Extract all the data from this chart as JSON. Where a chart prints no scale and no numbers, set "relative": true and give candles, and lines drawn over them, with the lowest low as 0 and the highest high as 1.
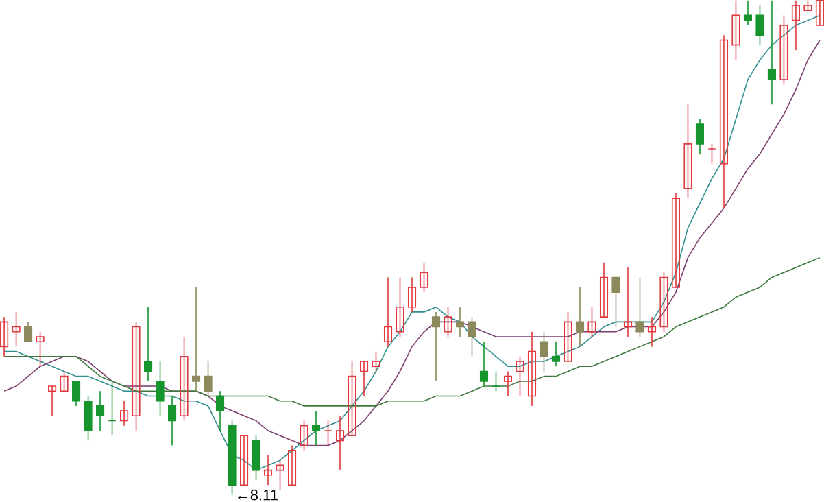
{
  "chart_data": {
    "type": "candlestick",
    "relative": true,
    "categories": [
      null,
      null,
      null,
      null,
      null,
      null,
      null,
      null,
      null,
      null,
      null,
      null,
      null,
      null,
      null,
      null,
      null,
      null,
      null,
      null,
      null,
      null,
      null,
      null,
      null,
      null,
      null,
      null,
      null,
      null,
      null,
      null,
      null,
      null,
      null,
      null,
      null,
      null,
      null,
      null,
      null,
      null,
      null,
      null,
      null,
      null,
      null,
      null,
      null,
      null,
      null,
      null,
      null,
      null,
      null,
      null,
      null,
      null,
      null,
      null,
      null,
      null,
      null,
      null,
      null,
      null,
      null,
      null,
      null
    ],
    "ohlc": [
      [
        0.3,
        0.36,
        0.28,
        0.35
      ],
      [
        0.33,
        0.37,
        0.3,
        0.34
      ],
      [
        0.34,
        0.35,
        0.31,
        0.31
      ],
      [
        0.31,
        0.33,
        0.26,
        0.32
      ],
      [
        0.21,
        0.22,
        0.16,
        0.22
      ],
      [
        0.21,
        0.25,
        0.21,
        0.24
      ],
      [
        0.23,
        0.23,
        0.18,
        0.19
      ],
      [
        0.19,
        0.2,
        0.11,
        0.13
      ],
      [
        0.18,
        0.21,
        0.13,
        0.16
      ],
      [
        0.15,
        0.23,
        0.12,
        0.15
      ],
      [
        0.15,
        0.19,
        0.14,
        0.17
      ],
      [
        0.16,
        0.35,
        0.13,
        0.34
      ],
      [
        0.27,
        0.38,
        0.23,
        0.25
      ],
      [
        0.23,
        0.27,
        0.16,
        0.19
      ],
      [
        0.18,
        0.2,
        0.1,
        0.15
      ],
      [
        0.16,
        0.32,
        0.15,
        0.28
      ],
      [
        0.24,
        0.42,
        0.21,
        0.23
      ],
      [
        0.24,
        0.27,
        0.2,
        0.21
      ],
      [
        0.2,
        0.21,
        0.13,
        0.17
      ],
      [
        0.14,
        0.15,
        0,
        0.02
      ],
      [
        0.02,
        0.12,
        0.02,
        0.12
      ],
      [
        0.11,
        0.12,
        0.03,
        0.05
      ],
      [
        0.04,
        0.08,
        0.02,
        0.05
      ],
      [
        0.05,
        0.07,
        0.01,
        0.06
      ],
      [
        0.02,
        0.1,
        0.02,
        0.09
      ],
      [
        0.1,
        0.15,
        0.09,
        0.14
      ],
      [
        0.14,
        0.17,
        0.1,
        0.13
      ],
      [
        0.13,
        0.15,
        0.1,
        0.13
      ],
      [
        0.11,
        0.16,
        0.05,
        0.13
      ],
      [
        0.12,
        0.27,
        0.12,
        0.24
      ],
      [
        0.25,
        0.27,
        0.2,
        0.27
      ],
      [
        0.26,
        0.29,
        0.25,
        0.27
      ],
      [
        0.31,
        0.44,
        0.3,
        0.34
      ],
      [
        0.33,
        0.44,
        0.32,
        0.38
      ],
      [
        0.38,
        0.44,
        0.37,
        0.42
      ],
      [
        0.42,
        0.47,
        0.41,
        0.45
      ],
      [
        0.36,
        0.37,
        0.23,
        0.34
      ],
      [
        0.33,
        0.38,
        0.32,
        0.36
      ],
      [
        0.35,
        0.38,
        0.32,
        0.34
      ],
      [
        0.35,
        0.36,
        0.28,
        0.32
      ],
      [
        0.25,
        0.31,
        0.22,
        0.23
      ],
      [
        0.22,
        0.25,
        0.21,
        0.22
      ],
      [
        0.23,
        0.25,
        0.2,
        0.24
      ],
      [
        0.25,
        0.28,
        0.2,
        0.27
      ],
      [
        0.2,
        0.33,
        0.18,
        0.29
      ],
      [
        0.31,
        0.33,
        0.25,
        0.28
      ],
      [
        0.28,
        0.31,
        0.26,
        0.27
      ],
      [
        0.27,
        0.37,
        0.27,
        0.35
      ],
      [
        0.35,
        0.42,
        0.3,
        0.33
      ],
      [
        0.33,
        0.38,
        0.32,
        0.35
      ],
      [
        0.36,
        0.47,
        0.36,
        0.44
      ],
      [
        0.44,
        0.44,
        0.34,
        0.41
      ],
      [
        0.34,
        0.46,
        0.32,
        0.35
      ],
      [
        0.35,
        0.44,
        0.32,
        0.33
      ],
      [
        0.33,
        0.36,
        0.3,
        0.34
      ],
      [
        0.34,
        0.45,
        0.33,
        0.44
      ],
      [
        0.42,
        0.61,
        0.42,
        0.6
      ],
      [
        0.62,
        0.79,
        0.6,
        0.71
      ],
      [
        0.75,
        0.76,
        0.69,
        0.71
      ],
      [
        0.7,
        0.71,
        0.67,
        0.7
      ],
      [
        0.67,
        0.93,
        0.58,
        0.92
      ],
      [
        0.91,
        1,
        0.88,
        0.97
      ],
      [
        0.97,
        1,
        0.95,
        0.96
      ],
      [
        0.97,
        0.99,
        0.91,
        0.93
      ],
      [
        0.86,
        1,
        0.79,
        0.84
      ],
      [
        0.84,
        0.97,
        0.83,
        0.95
      ],
      [
        0.96,
        1,
        0.9,
        0.99
      ],
      [
        0.98,
        1,
        0.98,
        0.99
      ],
      [
        0.95,
        1,
        0.95,
        1
      ]
    ],
    "colors": [
      "#e0393e",
      "#e0393e",
      "#8c8a5c",
      "#e0393e",
      "#e0393e",
      "#e0393e",
      "#15952c",
      "#15952c",
      "#15952c",
      "#15952c",
      "#e0393e",
      "#e0393e",
      "#15952c",
      "#15952c",
      "#15952c",
      "#e0393e",
      "#8c8a5c",
      "#8c8a5c",
      "#15952c",
      "#15952c",
      "#e0393e",
      "#15952c",
      "#e0393e",
      "#e0393e",
      "#e0393e",
      "#e0393e",
      "#15952c",
      "#e0393e",
      "#e0393e",
      "#e0393e",
      "#e0393e",
      "#e0393e",
      "#e0393e",
      "#e0393e",
      "#e0393e",
      "#e0393e",
      "#8c8a5c",
      "#e0393e",
      "#8c8a5c",
      "#8c8a5c",
      "#15952c",
      "#15952c",
      "#e0393e",
      "#e0393e",
      "#e0393e",
      "#8c8a5c",
      "#15952c",
      "#e0393e",
      "#8c8a5c",
      "#e0393e",
      "#e0393e",
      "#8c8a5c",
      "#e0393e",
      "#8c8a5c",
      "#e0393e",
      "#e0393e",
      "#e0393e",
      "#e0393e",
      "#15952c",
      "#e0393e",
      "#e0393e",
      "#e0393e",
      "#15952c",
      "#15952c",
      "#15952c",
      "#e0393e",
      "#e0393e",
      "#e0393e",
      "#e0393e"
    ],
    "series": [
      {
        "type": "line",
        "color": "#2f8f8f",
        "values": [
          0.29,
          0.29,
          0.28,
          0.27,
          0.26,
          0.25,
          0.24,
          0.24,
          0.23,
          0.22,
          0.21,
          0.21,
          0.2,
          0.2,
          0.2,
          0.19,
          0.19,
          0.18,
          0.13,
          0.08,
          0.07,
          0.05,
          0.06,
          0.07,
          0.09,
          0.11,
          0.13,
          0.14,
          0.15,
          0.18,
          0.21,
          0.25,
          0.3,
          0.33,
          0.37,
          0.37,
          0.38,
          0.36,
          0.35,
          0.32,
          0.3,
          0.28,
          0.26,
          0.26,
          0.27,
          0.27,
          0.28,
          0.29,
          0.3,
          0.32,
          0.34,
          0.35,
          0.35,
          0.35,
          0.35,
          0.39,
          0.45,
          0.54,
          0.59,
          0.64,
          0.68,
          0.76,
          0.84,
          0.88,
          0.91,
          0.93,
          0.95,
          0.96,
          0.97
        ]
      },
      {
        "type": "line",
        "color": "#7a3d6e",
        "values": [
          0.21,
          0.22,
          0.24,
          0.26,
          0.27,
          0.28,
          0.28,
          0.27,
          0.25,
          0.23,
          0.22,
          0.22,
          0.22,
          0.22,
          0.21,
          0.21,
          0.21,
          0.2,
          0.18,
          0.17,
          0.16,
          0.15,
          0.13,
          0.12,
          0.11,
          0.1,
          0.1,
          0.1,
          0.11,
          0.13,
          0.15,
          0.18,
          0.21,
          0.25,
          0.3,
          0.33,
          0.35,
          0.35,
          0.35,
          0.34,
          0.33,
          0.32,
          0.32,
          0.32,
          0.32,
          0.32,
          0.32,
          0.32,
          0.33,
          0.33,
          0.33,
          0.33,
          0.34,
          0.34,
          0.34,
          0.37,
          0.41,
          0.48,
          0.52,
          0.55,
          0.58,
          0.62,
          0.66,
          0.69,
          0.73,
          0.77,
          0.82,
          0.88,
          0.92
        ]
      },
      {
        "type": "line",
        "color": "#3c7a3c",
        "values": [
          0.28,
          0.28,
          0.28,
          0.28,
          0.28,
          0.28,
          0.28,
          0.26,
          0.24,
          0.23,
          0.22,
          0.21,
          0.21,
          0.21,
          0.21,
          0.21,
          0.21,
          0.2,
          0.2,
          0.2,
          0.2,
          0.2,
          0.2,
          0.19,
          0.19,
          0.18,
          0.18,
          0.18,
          0.18,
          0.18,
          0.18,
          0.18,
          0.19,
          0.19,
          0.19,
          0.19,
          0.2,
          0.2,
          0.2,
          0.21,
          0.22,
          0.22,
          0.22,
          0.23,
          0.23,
          0.24,
          0.24,
          0.25,
          0.26,
          0.26,
          0.27,
          0.28,
          0.29,
          0.3,
          0.31,
          0.32,
          0.34,
          0.35,
          0.36,
          0.37,
          0.38,
          0.4,
          0.41,
          0.42,
          0.44,
          0.45,
          0.46,
          0.47,
          0.48
        ]
      }
    ],
    "annotations": [
      "←8.11"
    ]
  }
}
